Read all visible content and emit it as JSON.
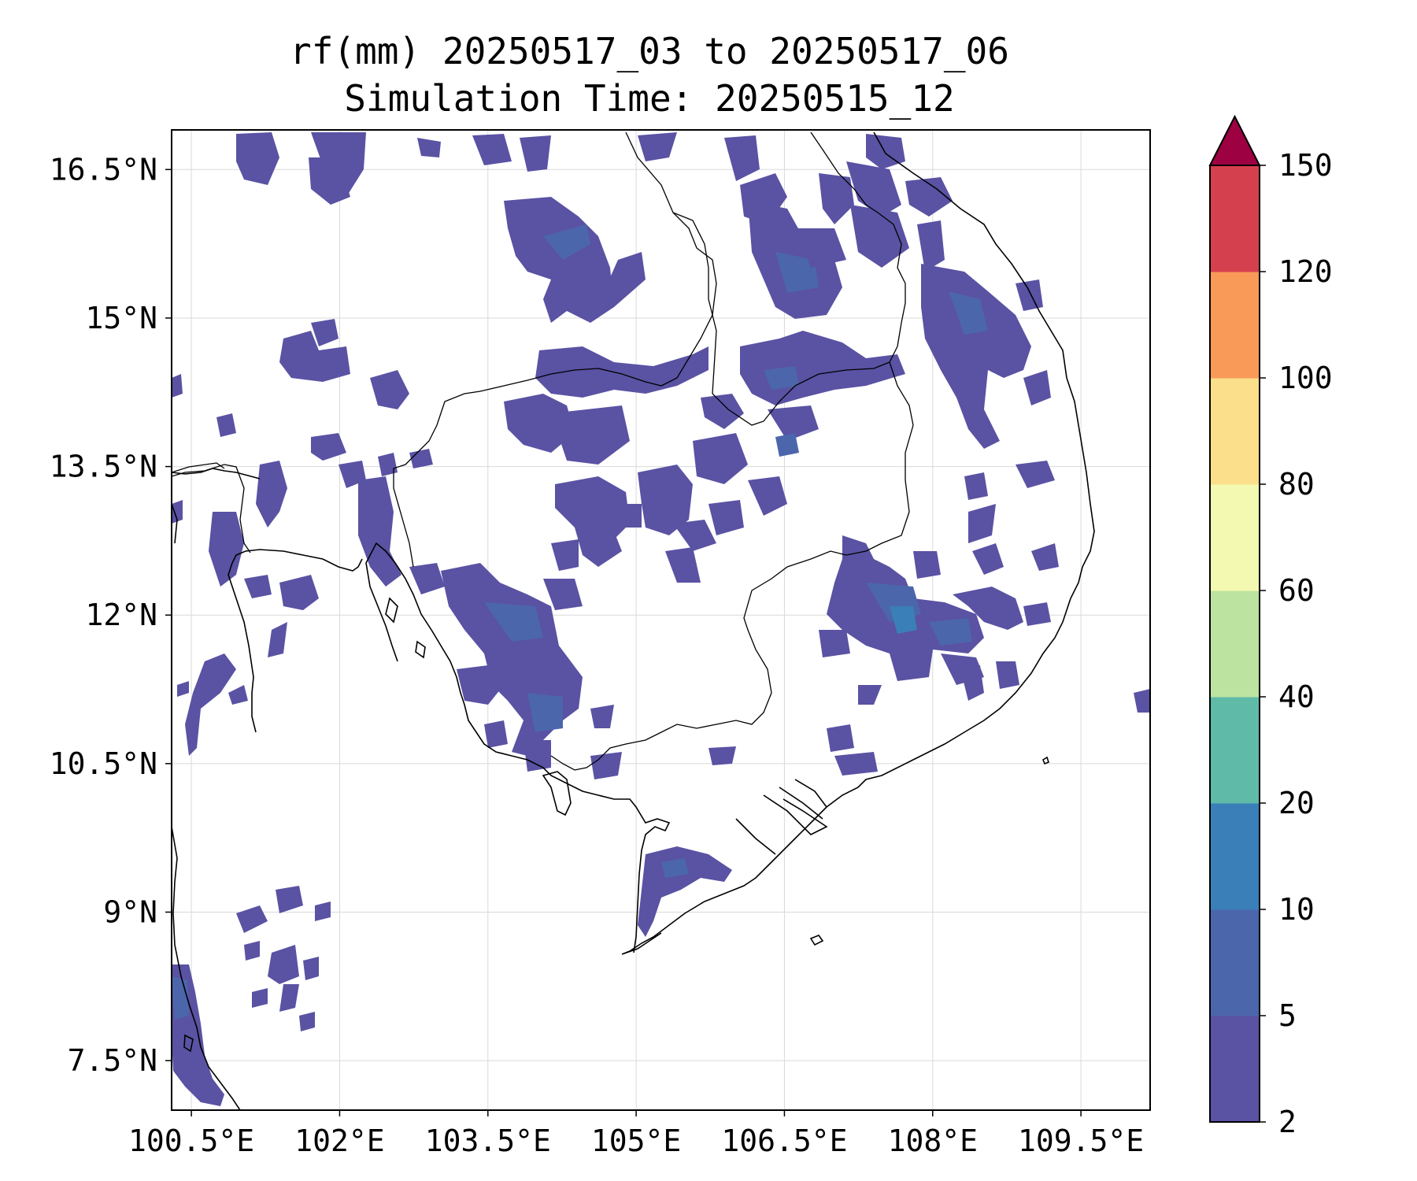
{
  "title_line1": "rf(mm) 20250517_03 to 20250517_06",
  "title_line2": "Simulation Time: 20250515_12",
  "variable": "rf(mm)",
  "lon_ticks": [
    "100.5°E",
    "102°E",
    "103.5°E",
    "105°E",
    "106.5°E",
    "108°E",
    "109.5°E"
  ],
  "lat_ticks": [
    "16.5°N",
    "15°N",
    "13.5°N",
    "12°N",
    "10.5°N",
    "9°N",
    "7.5°N"
  ],
  "map_extent": {
    "lon_min": 100.3,
    "lon_max": 110.2,
    "lat_min": 7.0,
    "lat_max": 16.9
  },
  "colorbar": {
    "labels": [
      "2",
      "5",
      "10",
      "20",
      "40",
      "60",
      "80",
      "100",
      "120",
      "150"
    ],
    "colors": [
      "#5a52a3",
      "#4c66ac",
      "#3a7fb8",
      "#5fbaa8",
      "#bde3a0",
      "#f3f9b0",
      "#fbdf8a",
      "#f99a59",
      "#d5404e",
      "#9d0142"
    ],
    "extend": "max"
  },
  "colors": {
    "rain_main": "#5a52a3",
    "rain_mid": "#4c66ac",
    "rain_high": "#3a7fb8",
    "coast": "#000000",
    "grid": "#d9d9d9"
  }
}
